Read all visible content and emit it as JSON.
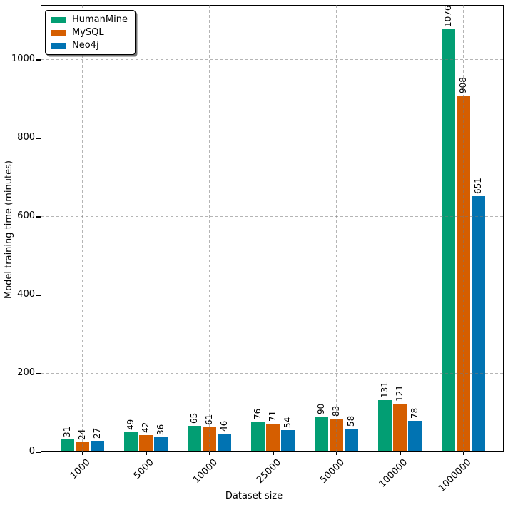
{
  "chart_data": {
    "type": "bar",
    "title": "",
    "xlabel": "Dataset size",
    "ylabel": "Model training time (minutes)",
    "categories": [
      "1000",
      "5000",
      "10000",
      "25000",
      "50000",
      "100000",
      "1000000"
    ],
    "series": [
      {
        "name": "HumanMine",
        "color": "#029e73",
        "values": [
          31,
          49,
          65,
          76,
          90,
          131,
          1076
        ]
      },
      {
        "name": "MySQL",
        "color": "#d55e00",
        "values": [
          24,
          42,
          61,
          71,
          83,
          121,
          908
        ]
      },
      {
        "name": "Neo4j",
        "color": "#0173b2",
        "values": [
          27,
          36,
          46,
          54,
          58,
          78,
          651
        ]
      }
    ],
    "y_ticks": [
      0,
      200,
      400,
      600,
      800,
      1000
    ],
    "ylim": [
      0,
      1136
    ],
    "grid": true,
    "grid_style": "dashed",
    "bar_value_labels": true,
    "value_label_rotation": 90,
    "x_tick_rotation": 45,
    "legend_position": "upper left"
  }
}
